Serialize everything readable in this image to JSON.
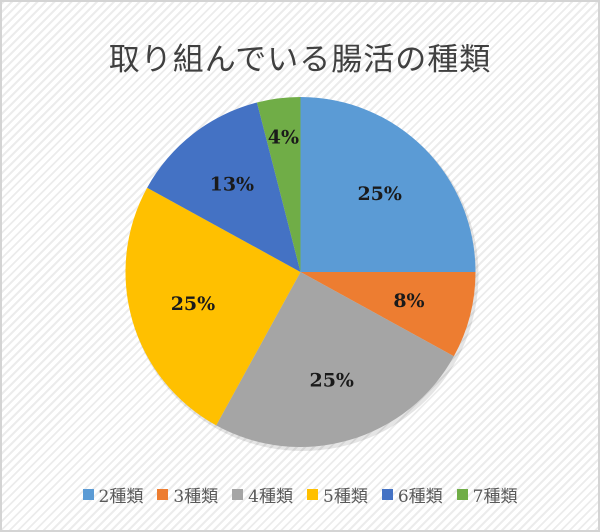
{
  "chart_data": {
    "type": "pie",
    "title": "取り組んでいる腸活の種類",
    "categories": [
      "2種類",
      "3種類",
      "4種類",
      "5種類",
      "6種類",
      "7種類"
    ],
    "values": [
      25,
      8,
      25,
      25,
      13,
      4
    ],
    "labels": [
      "25%",
      "8%",
      "25%",
      "25%",
      "13%",
      "4%"
    ],
    "colors": [
      "#5b9bd5",
      "#ed7d31",
      "#a5a5a5",
      "#ffc000",
      "#4472c4",
      "#70ad47"
    ],
    "start_angle_deg": 0,
    "direction": "clockwise",
    "legend_position": "bottom",
    "xlabel": "",
    "ylabel": ""
  },
  "title": "取り組んでいる腸活の種類",
  "legend": [
    {
      "label": "2種類",
      "color": "#5b9bd5"
    },
    {
      "label": "3種類",
      "color": "#ed7d31"
    },
    {
      "label": "4種類",
      "color": "#a5a5a5"
    },
    {
      "label": "5種類",
      "color": "#ffc000"
    },
    {
      "label": "6種類",
      "color": "#4472c4"
    },
    {
      "label": "7種類",
      "color": "#70ad47"
    }
  ]
}
